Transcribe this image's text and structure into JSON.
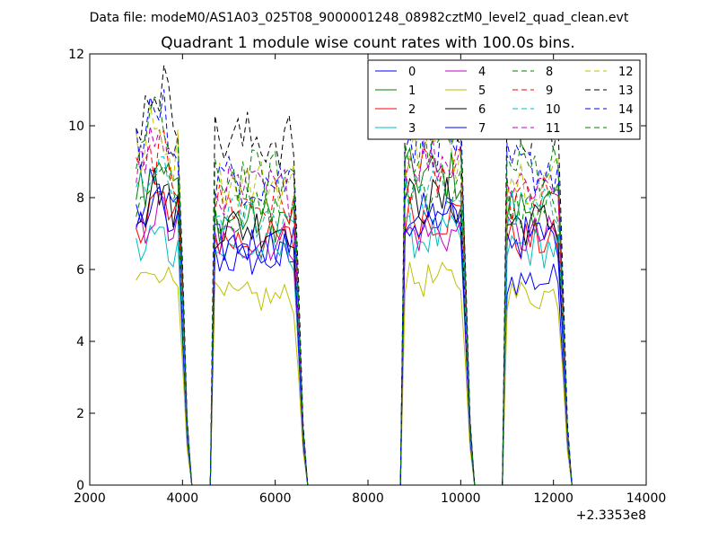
{
  "chart_data": {
    "type": "line",
    "suptitle": "Data file: modeM0/AS1A03_025T08_9000001248_08982cztM0_level2_quad_clean.evt",
    "title": "Quadrant 1 module wise count rates with 100.0s bins.",
    "xlabel": "",
    "ylabel": "",
    "x_offset_label": "+2.3353e8",
    "xlim": [
      2000,
      14000
    ],
    "ylim": [
      0,
      12
    ],
    "xticks": [
      2000,
      4000,
      6000,
      8000,
      10000,
      12000,
      14000
    ],
    "yticks": [
      0,
      2,
      4,
      6,
      8,
      10,
      12
    ],
    "grid": false,
    "legend_position": "top-right",
    "segments": [
      {
        "start": 3000,
        "n": 12
      },
      {
        "start": 4700,
        "n": 20
      },
      {
        "start": 8800,
        "n": 15
      },
      {
        "start": 11000,
        "n": 14
      }
    ],
    "plateau_levels": [
      [
        7.6,
        6.3,
        7.5,
        5.7
      ],
      [
        8.5,
        7.4,
        8.6,
        7.7
      ],
      [
        7.4,
        6.8,
        7.5,
        6.8
      ],
      [
        6.5,
        6.5,
        6.9,
        6.6
      ],
      [
        7.1,
        6.8,
        7.0,
        6.9
      ],
      [
        5.7,
        5.2,
        5.7,
        5.3
      ],
      [
        7.8,
        7.2,
        7.9,
        7.3
      ],
      [
        7.2,
        6.7,
        7.3,
        6.9
      ],
      [
        8.2,
        7.6,
        8.3,
        7.7
      ],
      [
        8.5,
        7.8,
        8.6,
        7.9
      ],
      [
        8.0,
        7.5,
        8.1,
        7.6
      ],
      [
        9.0,
        8.2,
        9.1,
        8.4
      ],
      [
        9.2,
        8.4,
        9.3,
        8.6
      ],
      [
        10.4,
        9.6,
        10.3,
        9.8
      ],
      [
        9.6,
        8.5,
        9.7,
        8.8
      ],
      [
        9.4,
        8.6,
        9.5,
        8.9
      ]
    ],
    "series": [
      {
        "name": "0",
        "color": "#0000ff",
        "dash": "solid"
      },
      {
        "name": "1",
        "color": "#008000",
        "dash": "solid"
      },
      {
        "name": "2",
        "color": "#ff0000",
        "dash": "solid"
      },
      {
        "name": "3",
        "color": "#00bfbf",
        "dash": "solid"
      },
      {
        "name": "4",
        "color": "#bf00bf",
        "dash": "solid"
      },
      {
        "name": "5",
        "color": "#bfbf00",
        "dash": "solid"
      },
      {
        "name": "6",
        "color": "#000000",
        "dash": "solid"
      },
      {
        "name": "7",
        "color": "#0000ff",
        "dash": "solid"
      },
      {
        "name": "8",
        "color": "#008000",
        "dash": "dashed"
      },
      {
        "name": "9",
        "color": "#ff0000",
        "dash": "dashed"
      },
      {
        "name": "10",
        "color": "#00bfbf",
        "dash": "dashed"
      },
      {
        "name": "11",
        "color": "#bf00bf",
        "dash": "dashed"
      },
      {
        "name": "12",
        "color": "#bfbf00",
        "dash": "dashed"
      },
      {
        "name": "13",
        "color": "#000000",
        "dash": "dashed"
      },
      {
        "name": "14",
        "color": "#0000ff",
        "dash": "dashed"
      },
      {
        "name": "15",
        "color": "#008000",
        "dash": "dashed"
      }
    ]
  }
}
